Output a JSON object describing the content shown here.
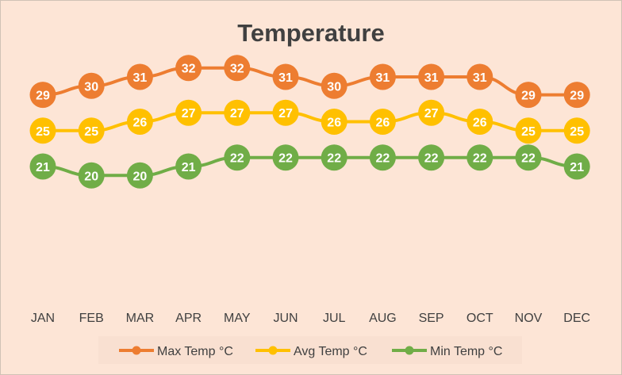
{
  "chart_data": {
    "type": "line",
    "title": "Temperature",
    "categories": [
      "JAN",
      "FEB",
      "MAR",
      "APR",
      "MAY",
      "JUN",
      "JUL",
      "AUG",
      "SEP",
      "OCT",
      "NOV",
      "DEC"
    ],
    "series": [
      {
        "name": "Max Temp °C",
        "color": "#ed7d31",
        "values": [
          29,
          30,
          31,
          32,
          32,
          31,
          30,
          31,
          31,
          31,
          29,
          29
        ]
      },
      {
        "name": "Avg Temp °C",
        "color": "#ffc000",
        "values": [
          25,
          25,
          26,
          27,
          27,
          27,
          26,
          26,
          27,
          26,
          25,
          25
        ]
      },
      {
        "name": "Min Temp °C",
        "color": "#70ad47",
        "values": [
          21,
          20,
          20,
          21,
          22,
          22,
          22,
          22,
          22,
          22,
          22,
          21
        ]
      }
    ],
    "data_labels": true,
    "legend": "bottom",
    "grid": false
  }
}
